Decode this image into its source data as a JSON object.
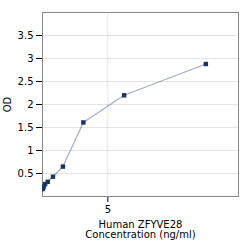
{
  "chart_data": {
    "type": "line",
    "x": [
      0.0,
      0.05,
      0.1,
      0.2,
      0.4,
      0.8,
      1.5625,
      3.125,
      6.25,
      12.5
    ],
    "values": [
      0.16,
      0.19,
      0.22,
      0.27,
      0.32,
      0.43,
      0.65,
      1.61,
      2.2,
      2.88
    ],
    "color": "#1a3560",
    "marker": "square",
    "xlabel": "Human ZFYVE28\nConcentration (ng/ml)",
    "ylabel": "OD",
    "xlim": [
      0,
      15
    ],
    "xticks": [
      5
    ],
    "ylim": [
      0,
      4.0
    ],
    "yticks": [
      0.5,
      1.0,
      1.5,
      2.0,
      2.5,
      3.0,
      3.5
    ],
    "grid": true
  }
}
